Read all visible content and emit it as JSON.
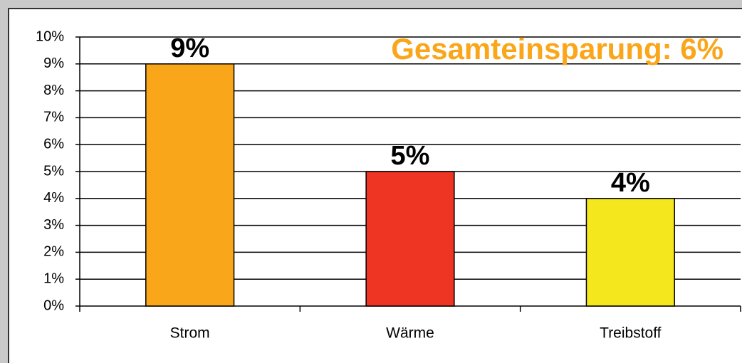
{
  "chart_data": {
    "type": "bar",
    "annotation": "Gesamteinsparung: 6%",
    "categories": [
      "Strom",
      "Wärme",
      "Treibstoff"
    ],
    "values": [
      9,
      5,
      4
    ],
    "value_labels": [
      "9%",
      "5%",
      "4%"
    ],
    "colors": [
      "#f9a61a",
      "#ee3524",
      "#f5e71e"
    ],
    "ylim": [
      0,
      10
    ],
    "yticks": [
      {
        "value": 0,
        "label": "0%"
      },
      {
        "value": 1,
        "label": "1%"
      },
      {
        "value": 2,
        "label": "2%"
      },
      {
        "value": 3,
        "label": "3%"
      },
      {
        "value": 4,
        "label": "4%"
      },
      {
        "value": 5,
        "label": "5%"
      },
      {
        "value": 6,
        "label": "6%"
      },
      {
        "value": 7,
        "label": "7%"
      },
      {
        "value": 8,
        "label": "8%"
      },
      {
        "value": 9,
        "label": "9%"
      },
      {
        "value": 10,
        "label": "10%"
      }
    ],
    "grid": true
  }
}
